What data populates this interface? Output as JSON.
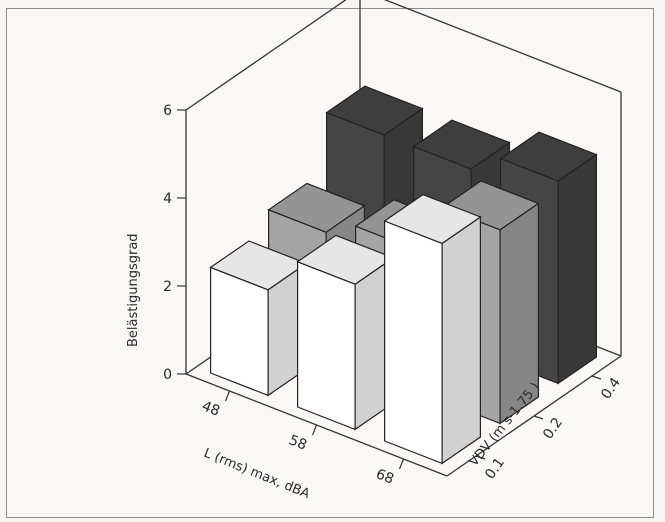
{
  "chart_data": {
    "type": "bar3d",
    "title": "",
    "zlabel": "Belästigungsgrad",
    "xlabel": "L (rms) max, dBA",
    "ylabel": "VDV (m s-1.75 )",
    "x_categories": [
      "48",
      "58",
      "68"
    ],
    "y_categories": [
      "0.1",
      "0.2",
      "0.4"
    ],
    "zlim": [
      0,
      6
    ],
    "zticks": [
      "0",
      "2",
      "4",
      "6"
    ],
    "series": [
      {
        "name": "0.1",
        "values": [
          2.4,
          3.3,
          5.0
        ],
        "color": "#ffffff"
      },
      {
        "name": "0.2",
        "values": [
          2.8,
          3.2,
          4.4
        ],
        "color": "#a4a4a4"
      },
      {
        "name": "0.4",
        "values": [
          4.1,
          4.1,
          4.6
        ],
        "color": "#454545"
      }
    ]
  }
}
